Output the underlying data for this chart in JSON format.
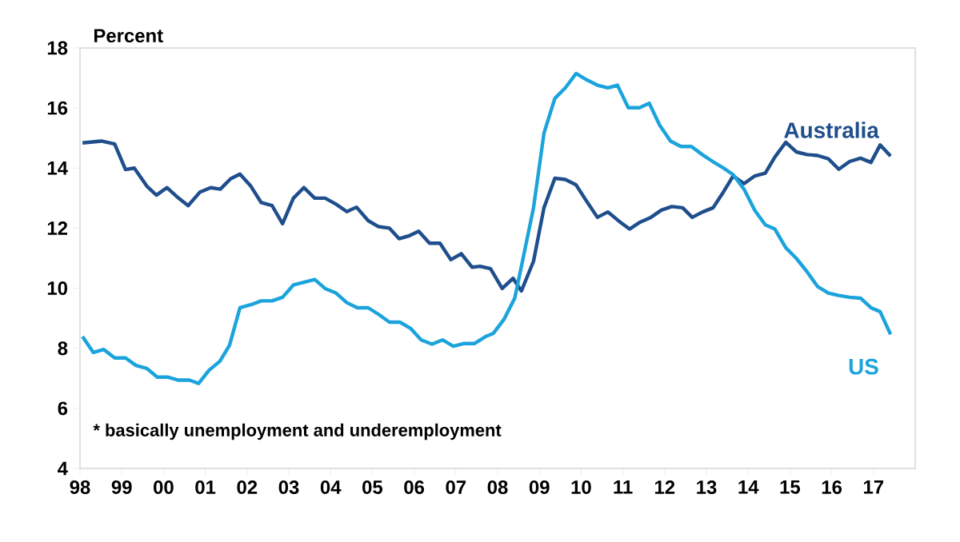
{
  "chart_data": {
    "type": "line",
    "ylabel": "Percent",
    "annotations": [
      "* basically unemployment and underemployment"
    ],
    "xlim": [
      1998,
      2018
    ],
    "ylim": [
      4,
      18
    ],
    "yticks": [
      4,
      6,
      8,
      10,
      12,
      14,
      16,
      18
    ],
    "xticks": [
      {
        "value": 1998,
        "label": "98"
      },
      {
        "value": 1999,
        "label": "99"
      },
      {
        "value": 2000,
        "label": "00"
      },
      {
        "value": 2001,
        "label": "01"
      },
      {
        "value": 2002,
        "label": "02"
      },
      {
        "value": 2003,
        "label": "03"
      },
      {
        "value": 2004,
        "label": "04"
      },
      {
        "value": 2005,
        "label": "05"
      },
      {
        "value": 2006,
        "label": "06"
      },
      {
        "value": 2007,
        "label": "07"
      },
      {
        "value": 2008,
        "label": "08"
      },
      {
        "value": 2009,
        "label": "09"
      },
      {
        "value": 2010,
        "label": "10"
      },
      {
        "value": 2011,
        "label": "11"
      },
      {
        "value": 2012,
        "label": "12"
      },
      {
        "value": 2013,
        "label": "13"
      },
      {
        "value": 2014,
        "label": "14"
      },
      {
        "value": 2015,
        "label": "15"
      },
      {
        "value": 2016,
        "label": "16"
      },
      {
        "value": 2017,
        "label": "17"
      }
    ],
    "grid": false,
    "legend": false,
    "marker": "none",
    "line_style": "solid",
    "series": [
      {
        "name": "Australia",
        "color": "#1f4e8c",
        "x": [
          1998.06,
          1998.51,
          1998.83,
          1999.09,
          1999.3,
          1999.6,
          1999.83,
          2000.08,
          2000.36,
          2000.59,
          2000.87,
          2001.13,
          2001.36,
          2001.61,
          2001.83,
          2002.09,
          2002.34,
          2002.6,
          2002.85,
          2003.11,
          2003.36,
          2003.62,
          2003.87,
          2004.13,
          2004.39,
          2004.62,
          2004.9,
          2005.15,
          2005.41,
          2005.64,
          2005.89,
          2006.11,
          2006.37,
          2006.62,
          2006.88,
          2007.13,
          2007.39,
          2007.58,
          2007.83,
          2008.11,
          2008.37,
          2008.57,
          2008.86,
          2009.11,
          2009.37,
          2009.62,
          2009.88,
          2010.13,
          2010.39,
          2010.64,
          2010.9,
          2011.16,
          2011.41,
          2011.67,
          2011.92,
          2012.17,
          2012.43,
          2012.66,
          2012.91,
          2013.16,
          2013.41,
          2013.64,
          2013.9,
          2014.16,
          2014.41,
          2014.64,
          2014.9,
          2015.15,
          2015.41,
          2015.66,
          2015.92,
          2016.17,
          2016.43,
          2016.69,
          2016.94,
          2017.16,
          2017.41
        ],
        "values": [
          14.84,
          14.9,
          14.8,
          13.95,
          14.0,
          13.4,
          13.1,
          13.35,
          13.0,
          12.75,
          13.2,
          13.35,
          13.3,
          13.65,
          13.8,
          13.4,
          12.85,
          12.75,
          12.15,
          13.0,
          13.35,
          13.0,
          13.0,
          12.8,
          12.55,
          12.7,
          12.25,
          12.05,
          12.0,
          11.65,
          11.75,
          11.9,
          11.5,
          11.5,
          10.95,
          11.15,
          10.7,
          10.73,
          10.65,
          9.99,
          10.33,
          9.91,
          10.9,
          12.68,
          13.66,
          13.62,
          13.44,
          12.9,
          12.36,
          12.54,
          12.24,
          11.97,
          12.2,
          12.36,
          12.6,
          12.72,
          12.68,
          12.36,
          12.54,
          12.68,
          13.21,
          13.74,
          13.48,
          13.74,
          13.83,
          14.37,
          14.86,
          14.54,
          14.45,
          14.42,
          14.31,
          13.96,
          14.22,
          14.33,
          14.19,
          14.77,
          14.4
        ]
      },
      {
        "name": "US",
        "color": "#1ba3dc",
        "x": [
          1998.06,
          1998.32,
          1998.57,
          1998.83,
          1999.09,
          1999.34,
          1999.6,
          1999.85,
          2000.11,
          2000.36,
          2000.62,
          2000.84,
          2001.09,
          2001.35,
          2001.58,
          2001.83,
          2002.09,
          2002.34,
          2002.6,
          2002.85,
          2003.11,
          2003.36,
          2003.62,
          2003.87,
          2004.13,
          2004.39,
          2004.64,
          2004.9,
          2005.15,
          2005.41,
          2005.66,
          2005.92,
          2006.17,
          2006.43,
          2006.68,
          2006.94,
          2007.2,
          2007.45,
          2007.71,
          2007.9,
          2008.15,
          2008.41,
          2008.57,
          2008.86,
          2009.11,
          2009.37,
          2009.62,
          2009.88,
          2010.13,
          2010.39,
          2010.64,
          2010.87,
          2011.13,
          2011.4,
          2011.63,
          2011.88,
          2012.14,
          2012.39,
          2012.64,
          2012.9,
          2013.15,
          2013.4,
          2013.64,
          2013.9,
          2014.16,
          2014.41,
          2014.64,
          2014.9,
          2015.15,
          2015.41,
          2015.66,
          2015.92,
          2016.17,
          2016.43,
          2016.69,
          2016.94,
          2017.16,
          2017.41
        ],
        "values": [
          8.39,
          7.86,
          7.96,
          7.68,
          7.68,
          7.43,
          7.33,
          7.04,
          7.04,
          6.94,
          6.94,
          6.83,
          7.27,
          7.57,
          8.1,
          9.35,
          9.45,
          9.58,
          9.58,
          9.7,
          10.11,
          10.2,
          10.29,
          9.99,
          9.84,
          9.52,
          9.35,
          9.35,
          9.13,
          8.87,
          8.87,
          8.66,
          8.28,
          8.14,
          8.28,
          8.07,
          8.16,
          8.16,
          8.39,
          8.5,
          8.96,
          9.67,
          10.73,
          12.68,
          15.16,
          16.32,
          16.67,
          17.15,
          16.94,
          16.76,
          16.67,
          16.76,
          16.01,
          16.01,
          16.16,
          15.43,
          14.9,
          14.72,
          14.72,
          14.45,
          14.22,
          14.01,
          13.78,
          13.3,
          12.59,
          12.11,
          11.97,
          11.35,
          11.0,
          10.55,
          10.06,
          9.84,
          9.76,
          9.7,
          9.67,
          9.35,
          9.22,
          8.46
        ]
      }
    ]
  }
}
